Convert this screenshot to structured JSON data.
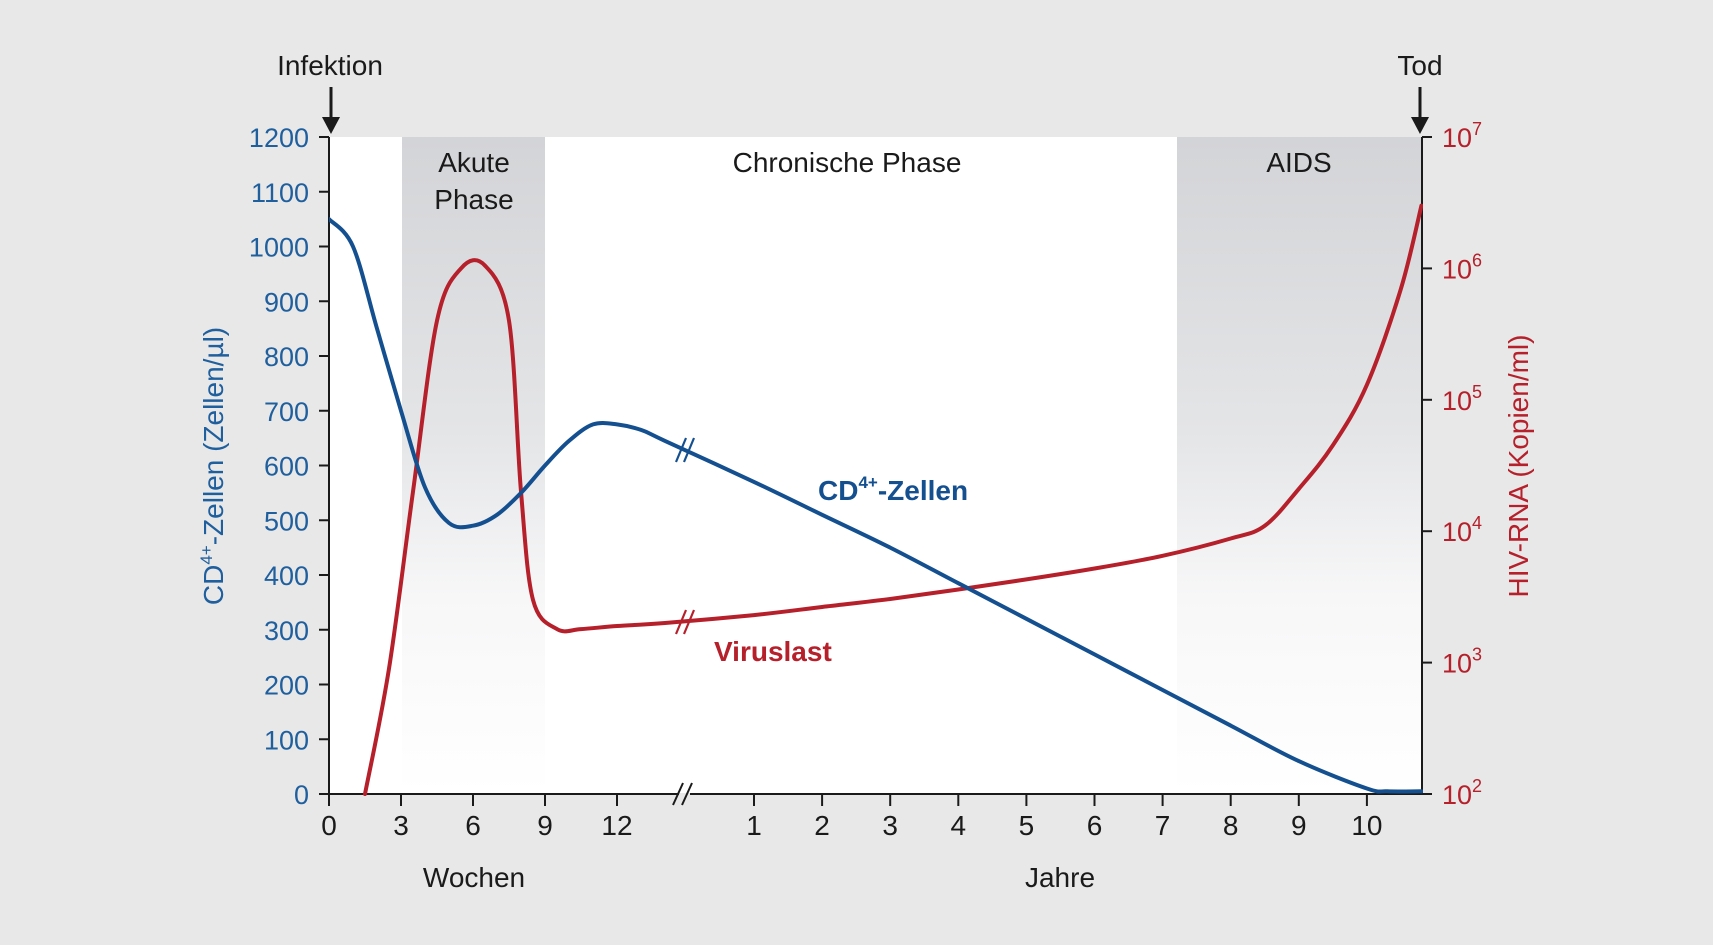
{
  "chart_data": {
    "type": "line",
    "phases": [
      {
        "label_lines": [
          "Akute",
          "Phase"
        ],
        "start_weeks": 3,
        "end_weeks": 9,
        "shade": "gray"
      },
      {
        "label_lines": [
          "Chronische Phase"
        ],
        "start_weeks": 9,
        "end_years": 7.2,
        "shade": "none"
      },
      {
        "label_lines": [
          "AIDS"
        ],
        "start_years": 7.2,
        "end_years": 10.8,
        "shade": "gray"
      }
    ],
    "events": {
      "infection": "Infektion",
      "death": "Tod"
    },
    "x_axis": {
      "weeks_ticks": [
        "0",
        "3",
        "6",
        "9",
        "12"
      ],
      "years_ticks": [
        "1",
        "2",
        "3",
        "4",
        "5",
        "6",
        "7",
        "8",
        "9",
        "10"
      ],
      "weeks_label": "Wochen",
      "years_label": "Jahre"
    },
    "y_left": {
      "label_main": "CD",
      "label_sup": "4+",
      "label_rest": "-Zellen (Zellen/µl)",
      "ticks": [
        "0",
        "100",
        "200",
        "300",
        "400",
        "500",
        "600",
        "700",
        "800",
        "900",
        "1000",
        "1100",
        "1200"
      ],
      "ylim": [
        0,
        1200
      ]
    },
    "y_right": {
      "label": "HIV-RNA (Kopien/ml)",
      "tick_base": "10",
      "tick_exponents": [
        "2",
        "3",
        "4",
        "5",
        "6",
        "7"
      ],
      "scale": "log",
      "ylim": [
        100,
        10000000
      ]
    },
    "series": [
      {
        "name_main": "CD",
        "name_sup": "4+",
        "name_rest": "-Zellen",
        "color": "#14508f",
        "axis": "left",
        "points": [
          {
            "w": 0,
            "v": 1050
          },
          {
            "w": 1,
            "v": 1000
          },
          {
            "w": 2,
            "v": 850
          },
          {
            "w": 3,
            "v": 700
          },
          {
            "w": 4,
            "v": 560
          },
          {
            "w": 5,
            "v": 495
          },
          {
            "w": 6,
            "v": 490
          },
          {
            "w": 7,
            "v": 510
          },
          {
            "w": 8,
            "v": 550
          },
          {
            "w": 9,
            "v": 600
          },
          {
            "w": 10,
            "v": 645
          },
          {
            "w": 11,
            "v": 675
          },
          {
            "w": 12,
            "v": 675
          },
          {
            "w": 13,
            "v": 665
          },
          {
            "w": 14,
            "v": 645
          },
          {
            "y": 1,
            "v": 570
          },
          {
            "y": 2,
            "v": 510
          },
          {
            "y": 3,
            "v": 450
          },
          {
            "y": 4,
            "v": 385
          },
          {
            "y": 5,
            "v": 320
          },
          {
            "y": 6,
            "v": 255
          },
          {
            "y": 7,
            "v": 190
          },
          {
            "y": 8,
            "v": 125
          },
          {
            "y": 9,
            "v": 60
          },
          {
            "y": 10,
            "v": 10
          },
          {
            "y": 10.3,
            "v": 5
          },
          {
            "y": 10.8,
            "v": 5
          }
        ]
      },
      {
        "name": "Viruslast",
        "color": "#b5202b",
        "axis": "right",
        "points": [
          {
            "w": 1.5,
            "v": 100
          },
          {
            "w": 2.5,
            "v": 900
          },
          {
            "w": 3.5,
            "v": 20000
          },
          {
            "w": 4.5,
            "v": 400000
          },
          {
            "w": 5.5,
            "v": 1000000
          },
          {
            "w": 6.5,
            "v": 1050000
          },
          {
            "w": 7.5,
            "v": 400000
          },
          {
            "w": 8,
            "v": 20000
          },
          {
            "w": 8.5,
            "v": 3000
          },
          {
            "w": 9.5,
            "v": 1800
          },
          {
            "w": 10.5,
            "v": 1800
          },
          {
            "w": 12,
            "v": 1900
          },
          {
            "w": 14,
            "v": 2000
          },
          {
            "y": 1,
            "v": 2300
          },
          {
            "y": 2,
            "v": 2650
          },
          {
            "y": 3,
            "v": 3050
          },
          {
            "y": 4,
            "v": 3600
          },
          {
            "y": 5,
            "v": 4300
          },
          {
            "y": 6,
            "v": 5200
          },
          {
            "y": 7,
            "v": 6500
          },
          {
            "y": 8,
            "v": 8800
          },
          {
            "y": 8.5,
            "v": 11000
          },
          {
            "y": 9,
            "v": 21000
          },
          {
            "y": 9.5,
            "v": 45000
          },
          {
            "y": 10,
            "v": 130000
          },
          {
            "y": 10.5,
            "v": 700000
          },
          {
            "y": 10.8,
            "v": 3000000
          }
        ]
      }
    ]
  }
}
